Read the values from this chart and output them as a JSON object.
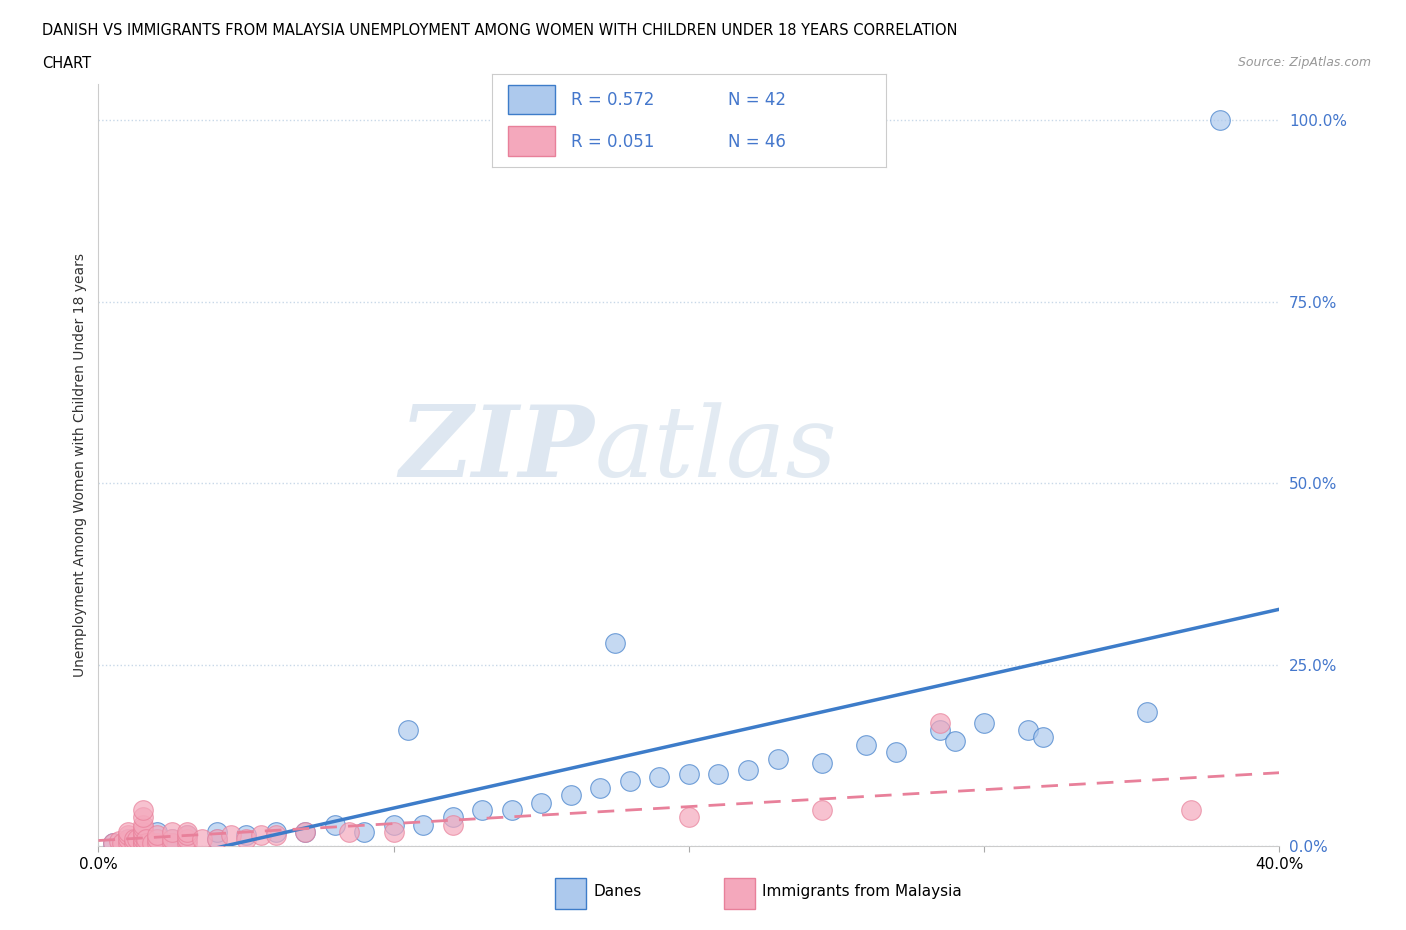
{
  "title_line1": "DANISH VS IMMIGRANTS FROM MALAYSIA UNEMPLOYMENT AMONG WOMEN WITH CHILDREN UNDER 18 YEARS CORRELATION",
  "title_line2": "CHART",
  "source": "Source: ZipAtlas.com",
  "ylabel": "Unemployment Among Women with Children Under 18 years",
  "xmin": 0.0,
  "xmax": 0.4,
  "ymin": 0.0,
  "ymax": 1.05,
  "yticks": [
    0.0,
    0.25,
    0.5,
    0.75,
    1.0
  ],
  "ytick_labels": [
    "0.0%",
    "25.0%",
    "50.0%",
    "75.0%",
    "100.0%"
  ],
  "danes_R": "0.572",
  "danes_N": "42",
  "immigrants_R": "0.051",
  "immigrants_N": "46",
  "danes_color": "#adc9ed",
  "immigrants_color": "#f4a8bc",
  "danes_line_color": "#3d7cc9",
  "immigrants_line_color": "#e8809a",
  "watermark_zip": "ZIP",
  "watermark_atlas": "atlas",
  "danes_scatter_x": [
    0.005,
    0.01,
    0.015,
    0.015,
    0.02,
    0.02,
    0.025,
    0.025,
    0.03,
    0.04,
    0.04,
    0.05,
    0.06,
    0.07,
    0.08,
    0.09,
    0.1,
    0.105,
    0.11,
    0.12,
    0.13,
    0.14,
    0.15,
    0.16,
    0.17,
    0.175,
    0.18,
    0.19,
    0.2,
    0.21,
    0.22,
    0.23,
    0.245,
    0.26,
    0.27,
    0.285,
    0.29,
    0.3,
    0.315,
    0.32,
    0.355,
    0.38
  ],
  "danes_scatter_y": [
    0.005,
    0.01,
    0.005,
    0.01,
    0.01,
    0.02,
    0.005,
    0.01,
    0.015,
    0.01,
    0.02,
    0.015,
    0.02,
    0.02,
    0.03,
    0.02,
    0.03,
    0.16,
    0.03,
    0.04,
    0.05,
    0.05,
    0.06,
    0.07,
    0.08,
    0.28,
    0.09,
    0.095,
    0.1,
    0.1,
    0.105,
    0.12,
    0.115,
    0.14,
    0.13,
    0.16,
    0.145,
    0.17,
    0.16,
    0.15,
    0.185,
    1.0
  ],
  "immigrants_scatter_x": [
    0.005,
    0.007,
    0.008,
    0.01,
    0.01,
    0.01,
    0.01,
    0.012,
    0.012,
    0.013,
    0.015,
    0.015,
    0.015,
    0.015,
    0.015,
    0.015,
    0.015,
    0.015,
    0.015,
    0.016,
    0.016,
    0.018,
    0.02,
    0.02,
    0.02,
    0.025,
    0.025,
    0.025,
    0.03,
    0.03,
    0.03,
    0.03,
    0.035,
    0.04,
    0.045,
    0.05,
    0.055,
    0.06,
    0.07,
    0.085,
    0.1,
    0.12,
    0.2,
    0.245,
    0.285,
    0.37
  ],
  "immigrants_scatter_y": [
    0.005,
    0.007,
    0.005,
    0.005,
    0.01,
    0.015,
    0.02,
    0.005,
    0.01,
    0.01,
    0.005,
    0.005,
    0.01,
    0.015,
    0.02,
    0.025,
    0.03,
    0.04,
    0.05,
    0.005,
    0.01,
    0.005,
    0.005,
    0.01,
    0.015,
    0.005,
    0.01,
    0.02,
    0.005,
    0.01,
    0.015,
    0.02,
    0.01,
    0.01,
    0.015,
    0.01,
    0.015,
    0.015,
    0.02,
    0.02,
    0.02,
    0.03,
    0.04,
    0.05,
    0.17,
    0.05
  ]
}
